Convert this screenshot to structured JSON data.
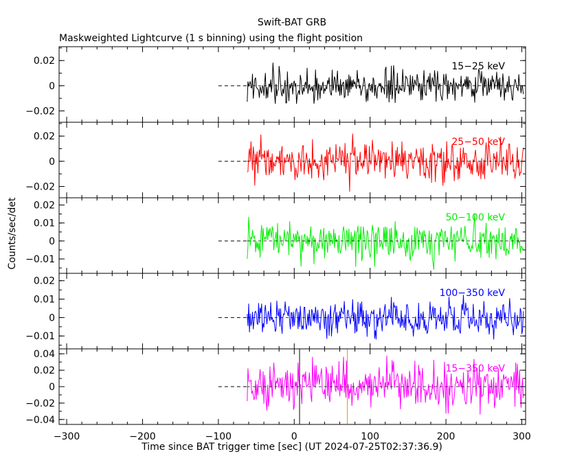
{
  "chart_data": {
    "type": "line",
    "title": "Swift-BAT GRB",
    "subtitle": "Maskweighted Lightcurve (1 s binning) using the flight position",
    "xlabel": "Time since BAT trigger time [sec] (UT 2024-07-25T02:37:36.9)",
    "ylabel": "Counts/sec/det",
    "xlim": [
      -310,
      305
    ],
    "x_ticks": [
      -300,
      -200,
      -100,
      0,
      100,
      200,
      300
    ],
    "x_tick_labels": [
      "−300",
      "−200",
      "−100",
      "0",
      "100",
      "200",
      "300"
    ],
    "data_x_range": [
      -62,
      302
    ],
    "pre_data_dashed_range": [
      -100,
      -62
    ],
    "vertical_markers": [
      {
        "x": 70,
        "color": "#e69500",
        "panel": "15-350 keV"
      },
      {
        "x": 7,
        "color": "#000000",
        "panel": "15-350 keV"
      }
    ],
    "panels": [
      {
        "label": "15−25 keV",
        "color": "#000000",
        "ylim": [
          -0.029,
          0.031
        ],
        "yticks": [
          -0.02,
          0,
          0.02
        ],
        "ytick_labels": [
          "−0.02",
          "0",
          "0.02"
        ],
        "noise_sigma": 0.0065,
        "series_name": "15-25 keV"
      },
      {
        "label": "25−50 keV",
        "color": "#ff0000",
        "ylim": [
          -0.029,
          0.031
        ],
        "yticks": [
          -0.02,
          0,
          0.02
        ],
        "ytick_labels": [
          "−0.02",
          "0",
          "0.02"
        ],
        "noise_sigma": 0.0075,
        "series_name": "25-50 keV"
      },
      {
        "label": "50−100 keV",
        "color": "#00ee00",
        "ylim": [
          -0.018,
          0.024
        ],
        "yticks": [
          -0.01,
          0,
          0.01,
          0.02
        ],
        "ytick_labels": [
          "−0.01",
          "0",
          "0.01",
          "0.02"
        ],
        "noise_sigma": 0.0055,
        "series_name": "50-100 keV"
      },
      {
        "label": "100−350 keV",
        "color": "#0000ff",
        "ylim": [
          -0.017,
          0.024
        ],
        "yticks": [
          -0.01,
          0,
          0.01,
          0.02
        ],
        "ytick_labels": [
          "−0.01",
          "0",
          "0.01",
          "0.02"
        ],
        "noise_sigma": 0.005,
        "series_name": "100-350 keV"
      },
      {
        "label": "15−350 keV",
        "color": "#ff00ff",
        "ylim": [
          -0.046,
          0.046
        ],
        "yticks": [
          -0.04,
          -0.02,
          0,
          0.02,
          0.04
        ],
        "ytick_labels": [
          "−0.04",
          "−0.02",
          "0",
          "0.02",
          "0.04"
        ],
        "noise_sigma": 0.013,
        "series_name": "15-350 keV"
      }
    ]
  }
}
